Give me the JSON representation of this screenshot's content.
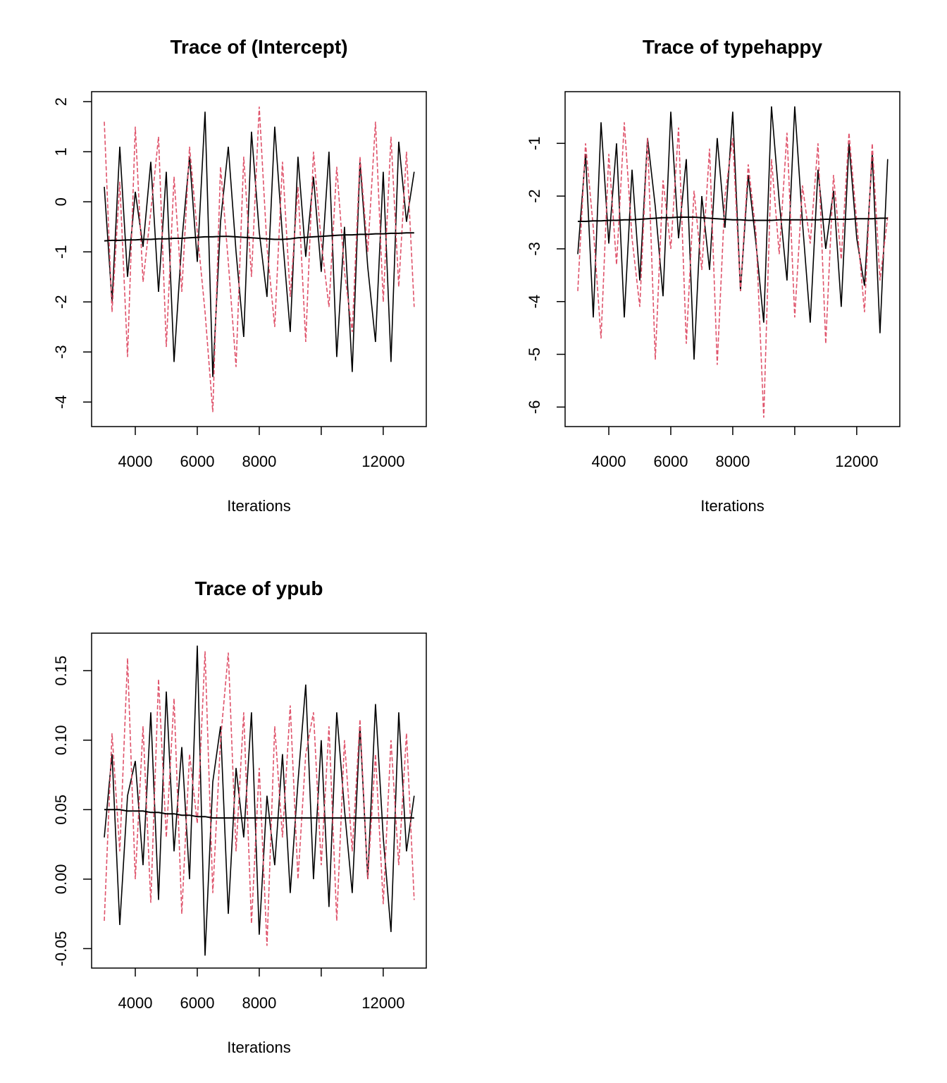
{
  "chart_data": [
    {
      "type": "line",
      "title": "Trace of (Intercept)",
      "x_label": "Iterations",
      "x": [
        3000,
        3250,
        3500,
        3750,
        4000,
        4250,
        4500,
        4750,
        5000,
        5250,
        5500,
        5750,
        6000,
        6250,
        6500,
        6750,
        7000,
        7250,
        7500,
        7750,
        8000,
        8250,
        8500,
        8750,
        9000,
        9250,
        9500,
        9750,
        10000,
        10250,
        10500,
        10750,
        11000,
        11250,
        11500,
        11750,
        12000,
        12250,
        12500,
        12750,
        13000
      ],
      "series": [
        {
          "color": "#000000",
          "linestyle": "solid",
          "values": [
            0.3,
            -2.0,
            1.1,
            -1.5,
            0.2,
            -0.9,
            0.8,
            -1.8,
            0.6,
            -3.2,
            -0.8,
            0.9,
            -1.2,
            1.8,
            -3.5,
            -0.4,
            1.1,
            -1.0,
            -2.7,
            1.4,
            -0.6,
            -1.9,
            1.5,
            -0.7,
            -2.6,
            0.9,
            -1.1,
            0.5,
            -1.4,
            1.0,
            -3.1,
            -0.5,
            -3.4,
            0.8,
            -1.3,
            -2.8,
            0.6,
            -3.2,
            1.2,
            -0.4,
            0.6
          ]
        },
        {
          "color": "#DF536B",
          "linestyle": "dashed",
          "values": [
            1.6,
            -2.2,
            0.4,
            -3.1,
            1.5,
            -1.6,
            -0.2,
            1.3,
            -2.9,
            0.5,
            -1.8,
            1.1,
            -0.6,
            -2.2,
            -4.2,
            0.7,
            -1.2,
            -3.3,
            0.9,
            -1.5,
            1.9,
            -0.9,
            -2.5,
            0.8,
            -1.9,
            0.3,
            -2.8,
            1.0,
            -0.8,
            -2.1,
            0.7,
            -1.4,
            -2.6,
            0.9,
            -1.0,
            1.6,
            -2.0,
            1.3,
            -1.7,
            1.0,
            -2.1
          ]
        },
        {
          "color": "#000000",
          "linestyle": "smooth",
          "values": [
            -0.78,
            -0.77,
            -0.77,
            -0.76,
            -0.76,
            -0.75,
            -0.75,
            -0.74,
            -0.74,
            -0.73,
            -0.73,
            -0.72,
            -0.71,
            -0.7,
            -0.7,
            -0.69,
            -0.69,
            -0.7,
            -0.71,
            -0.72,
            -0.73,
            -0.74,
            -0.75,
            -0.75,
            -0.74,
            -0.72,
            -0.71,
            -0.7,
            -0.69,
            -0.68,
            -0.67,
            -0.66,
            -0.66,
            -0.65,
            -0.65,
            -0.64,
            -0.64,
            -0.63,
            -0.63,
            -0.62,
            -0.62
          ]
        }
      ],
      "xlim": [
        2590,
        13390
      ],
      "xticks": [
        4000,
        6000,
        8000,
        {
          "value": 10000,
          "label": null
        },
        12000
      ],
      "ylim": [
        -4.49,
        2.2
      ],
      "yticks": [
        -4,
        -3,
        -2,
        -1,
        0,
        1,
        2
      ]
    },
    {
      "type": "line",
      "title": "Trace of typehappy",
      "x_label": "Iterations",
      "x": [
        3000,
        3250,
        3500,
        3750,
        4000,
        4250,
        4500,
        4750,
        5000,
        5250,
        5500,
        5750,
        6000,
        6250,
        6500,
        6750,
        7000,
        7250,
        7500,
        7750,
        8000,
        8250,
        8500,
        8750,
        9000,
        9250,
        9500,
        9750,
        10000,
        10250,
        10500,
        10750,
        11000,
        11250,
        11500,
        11750,
        12000,
        12250,
        12500,
        12750,
        13000
      ],
      "series": [
        {
          "color": "#000000",
          "linestyle": "solid",
          "values": [
            -3.1,
            -1.2,
            -4.3,
            -0.6,
            -2.9,
            -1.0,
            -4.3,
            -1.5,
            -3.6,
            -0.9,
            -2.2,
            -3.9,
            -0.4,
            -2.8,
            -1.3,
            -5.1,
            -2.0,
            -3.4,
            -0.9,
            -2.6,
            -0.4,
            -3.8,
            -1.6,
            -2.9,
            -4.4,
            -0.3,
            -2.1,
            -3.6,
            -0.3,
            -2.5,
            -4.4,
            -1.5,
            -3.0,
            -1.9,
            -4.1,
            -1.0,
            -2.8,
            -3.7,
            -1.2,
            -4.6,
            -1.3
          ]
        },
        {
          "color": "#DF536B",
          "linestyle": "dashed",
          "values": [
            -3.8,
            -1.0,
            -2.6,
            -4.7,
            -1.2,
            -3.3,
            -0.6,
            -2.8,
            -4.1,
            -0.9,
            -5.1,
            -1.7,
            -3.0,
            -0.7,
            -4.8,
            -1.9,
            -3.4,
            -1.1,
            -5.2,
            -2.0,
            -0.9,
            -3.8,
            -1.4,
            -2.7,
            -6.2,
            -1.3,
            -3.1,
            -0.8,
            -4.3,
            -1.8,
            -2.9,
            -1.0,
            -4.8,
            -1.6,
            -3.2,
            -0.8,
            -2.5,
            -4.2,
            -1.0,
            -3.6,
            -2.4
          ]
        },
        {
          "color": "#000000",
          "linestyle": "smooth",
          "values": [
            -2.48,
            -2.48,
            -2.47,
            -2.47,
            -2.46,
            -2.46,
            -2.45,
            -2.45,
            -2.44,
            -2.43,
            -2.42,
            -2.41,
            -2.41,
            -2.4,
            -2.4,
            -2.4,
            -2.41,
            -2.42,
            -2.43,
            -2.44,
            -2.45,
            -2.45,
            -2.46,
            -2.46,
            -2.46,
            -2.46,
            -2.45,
            -2.45,
            -2.45,
            -2.45,
            -2.45,
            -2.45,
            -2.44,
            -2.44,
            -2.44,
            -2.44,
            -2.43,
            -2.43,
            -2.43,
            -2.42,
            -2.42
          ]
        }
      ],
      "xlim": [
        2590,
        13390
      ],
      "xticks": [
        4000,
        6000,
        8000,
        {
          "value": 10000,
          "label": null
        },
        12000
      ],
      "ylim": [
        -6.37,
        -0.02
      ],
      "yticks": [
        -6,
        -5,
        -4,
        -3,
        -2,
        -1
      ]
    },
    {
      "type": "line",
      "title": "Trace of ypub",
      "x_label": "Iterations",
      "x": [
        3000,
        3250,
        3500,
        3750,
        4000,
        4250,
        4500,
        4750,
        5000,
        5250,
        5500,
        5750,
        6000,
        6250,
        6500,
        6750,
        7000,
        7250,
        7500,
        7750,
        8000,
        8250,
        8500,
        8750,
        9000,
        9250,
        9500,
        9750,
        10000,
        10250,
        10500,
        10750,
        11000,
        11250,
        11500,
        11750,
        12000,
        12250,
        12500,
        12750,
        13000
      ],
      "series": [
        {
          "color": "#000000",
          "linestyle": "solid",
          "values": [
            0.03,
            0.09,
            -0.033,
            0.06,
            0.085,
            0.01,
            0.12,
            -0.015,
            0.135,
            0.02,
            0.095,
            0.0,
            0.168,
            -0.055,
            0.07,
            0.11,
            -0.025,
            0.08,
            0.03,
            0.12,
            -0.04,
            0.06,
            0.01,
            0.09,
            -0.01,
            0.07,
            0.14,
            0.0,
            0.1,
            -0.02,
            0.12,
            0.05,
            -0.01,
            0.11,
            0.0,
            0.126,
            0.03,
            -0.038,
            0.12,
            0.02,
            0.06
          ]
        },
        {
          "color": "#DF536B",
          "linestyle": "dashed",
          "values": [
            -0.03,
            0.105,
            0.02,
            0.159,
            0.0,
            0.11,
            -0.017,
            0.144,
            0.03,
            0.13,
            -0.025,
            0.09,
            0.04,
            0.164,
            -0.01,
            0.1,
            0.163,
            0.02,
            0.12,
            -0.032,
            0.08,
            -0.048,
            0.11,
            0.03,
            0.125,
            0.0,
            0.09,
            0.12,
            0.01,
            0.11,
            -0.03,
            0.1,
            0.02,
            0.115,
            0.0,
            0.09,
            -0.018,
            0.1,
            0.01,
            0.105,
            -0.015
          ]
        },
        {
          "color": "#000000",
          "linestyle": "smooth",
          "values": [
            0.05,
            0.05,
            0.05,
            0.049,
            0.049,
            0.049,
            0.048,
            0.048,
            0.047,
            0.047,
            0.046,
            0.046,
            0.045,
            0.045,
            0.044,
            0.044,
            0.044,
            0.044,
            0.044,
            0.044,
            0.044,
            0.044,
            0.044,
            0.044,
            0.044,
            0.044,
            0.044,
            0.044,
            0.044,
            0.044,
            0.044,
            0.044,
            0.044,
            0.044,
            0.044,
            0.044,
            0.044,
            0.044,
            0.044,
            0.044,
            0.044
          ]
        }
      ],
      "xlim": [
        2590,
        13390
      ],
      "xticks": [
        4000,
        6000,
        8000,
        {
          "value": 10000,
          "label": null
        },
        12000
      ],
      "ylim": [
        -0.064,
        0.177
      ],
      "yticks": [
        -0.05,
        {
          "value": 0,
          "label": "0.00"
        },
        0.05,
        {
          "value": 0.1,
          "label": "0.10"
        },
        0.15
      ]
    }
  ]
}
